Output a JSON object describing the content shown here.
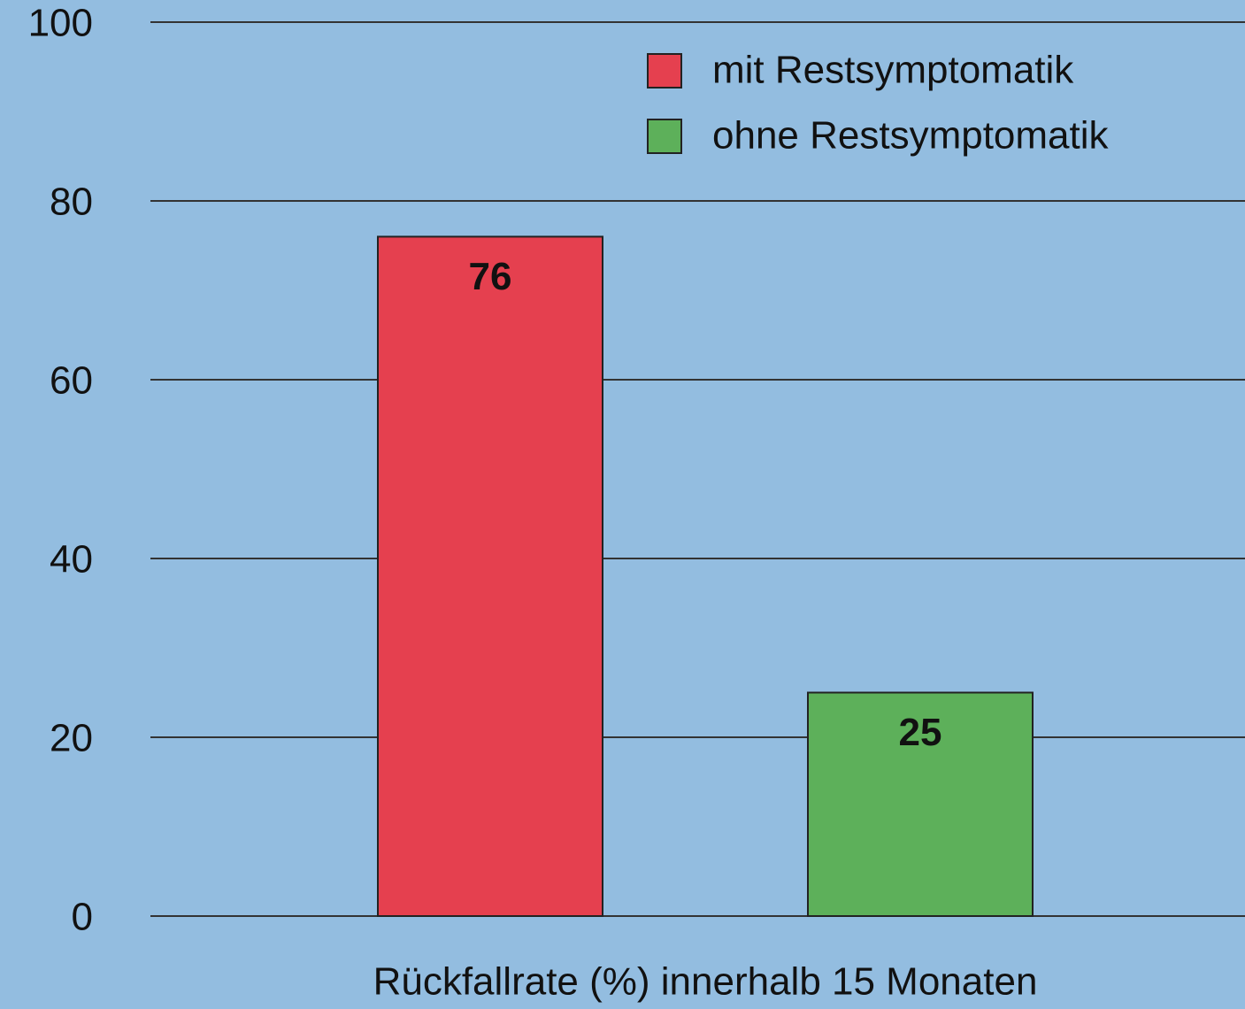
{
  "chart_data": {
    "type": "bar",
    "x_label": "Rückfallrate (%) innerhalb 15 Monaten",
    "categories": [
      null
    ],
    "series": [
      {
        "name": "mit Restsymptomatik",
        "color": "#e5404f",
        "values": [
          76
        ]
      },
      {
        "name": "ohne Restsymptomatik",
        "color": "#5db05a",
        "values": [
          25
        ]
      }
    ],
    "ylim": [
      0,
      100
    ],
    "yticks": [
      0,
      20,
      40,
      60,
      80,
      100
    ],
    "grid": true,
    "legend": "top-right"
  }
}
